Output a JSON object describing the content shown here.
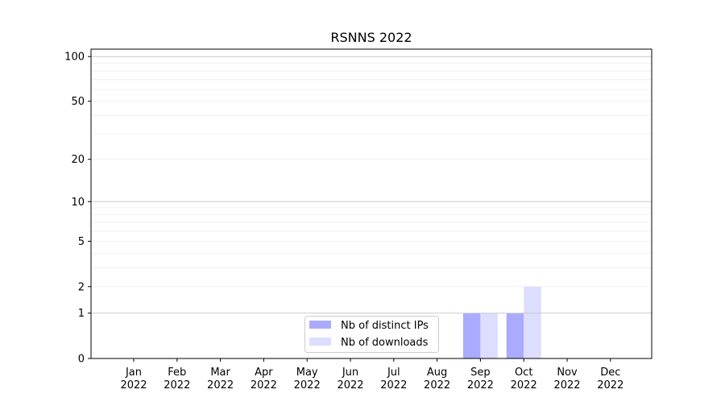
{
  "chart_data": {
    "type": "bar",
    "title": "RSNNS 2022",
    "xlabel": "",
    "ylabel": "",
    "yscale": "symlog (log10(1+y))",
    "ylim": [
      0,
      112
    ],
    "yticks": [
      0,
      1,
      2,
      5,
      10,
      20,
      50,
      100
    ],
    "grid": true,
    "legend_placement": "lower-center",
    "categories": [
      "Jan\n2022",
      "Feb\n2022",
      "Mar\n2022",
      "Apr\n2022",
      "May\n2022",
      "Jun\n2022",
      "Jul\n2022",
      "Aug\n2022",
      "Sep\n2022",
      "Oct\n2022",
      "Nov\n2022",
      "Dec\n2022"
    ],
    "series": [
      {
        "name": "Nb of distinct IPs",
        "color": "#aaaaff",
        "values": [
          0,
          0,
          0,
          0,
          0,
          0,
          0,
          0,
          1,
          1,
          0,
          0
        ]
      },
      {
        "name": "Nb of downloads",
        "color": "#ddddff",
        "values": [
          0,
          0,
          0,
          0,
          0,
          0,
          0,
          0,
          1,
          2,
          0,
          0
        ]
      }
    ]
  }
}
